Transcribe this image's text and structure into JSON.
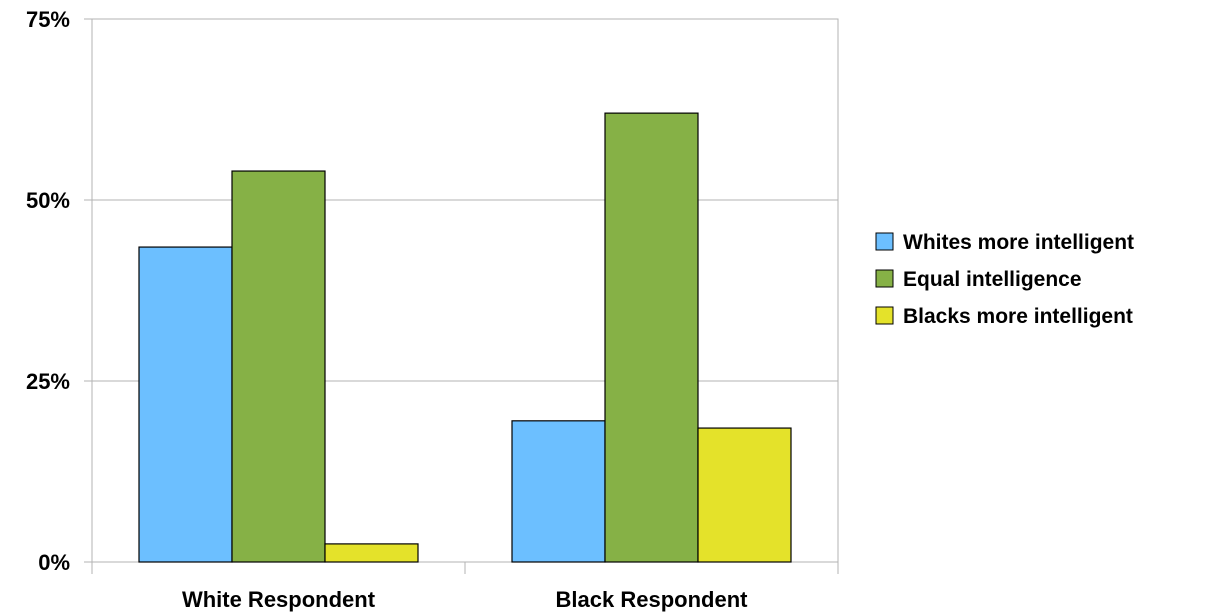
{
  "chart_data": {
    "type": "bar",
    "title": "",
    "xlabel": "",
    "ylabel": "",
    "categories": [
      "White Respondent",
      "Black Respondent"
    ],
    "series": [
      {
        "name": "Whites more intelligent",
        "color": "#6CBFFF",
        "values": [
          43.5,
          19.5
        ]
      },
      {
        "name": "Equal intelligence",
        "color": "#86B146",
        "values": [
          54,
          62
        ]
      },
      {
        "name": "Blacks more intelligent",
        "color": "#E4E22A",
        "values": [
          2.5,
          18.5
        ]
      }
    ],
    "ylim": [
      0,
      75
    ],
    "yticks": [
      0,
      25,
      50,
      75
    ],
    "ytick_labels": [
      "0%",
      "25%",
      "50%",
      "75%"
    ],
    "grid": true,
    "legend_position": "right"
  }
}
